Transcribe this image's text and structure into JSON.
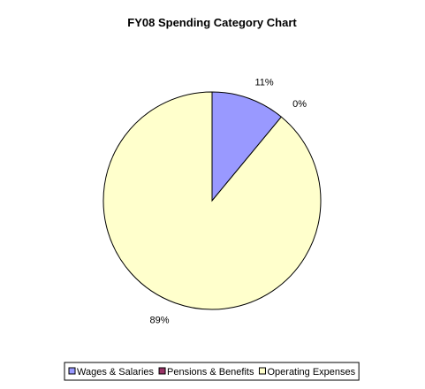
{
  "chart_data": {
    "type": "pie",
    "title": "FY08 Spending Category Chart",
    "categories": [
      "Wages & Salaries",
      "Pensions & Benefits",
      "Operating Expenses"
    ],
    "values": [
      11,
      0,
      89
    ],
    "labels": [
      "11%",
      "0%",
      "89%"
    ],
    "colors": [
      "#9999ff",
      "#993366",
      "#ffffcc"
    ],
    "legend": "bottom",
    "start_angle_deg": 0,
    "direction": "clockwise"
  }
}
